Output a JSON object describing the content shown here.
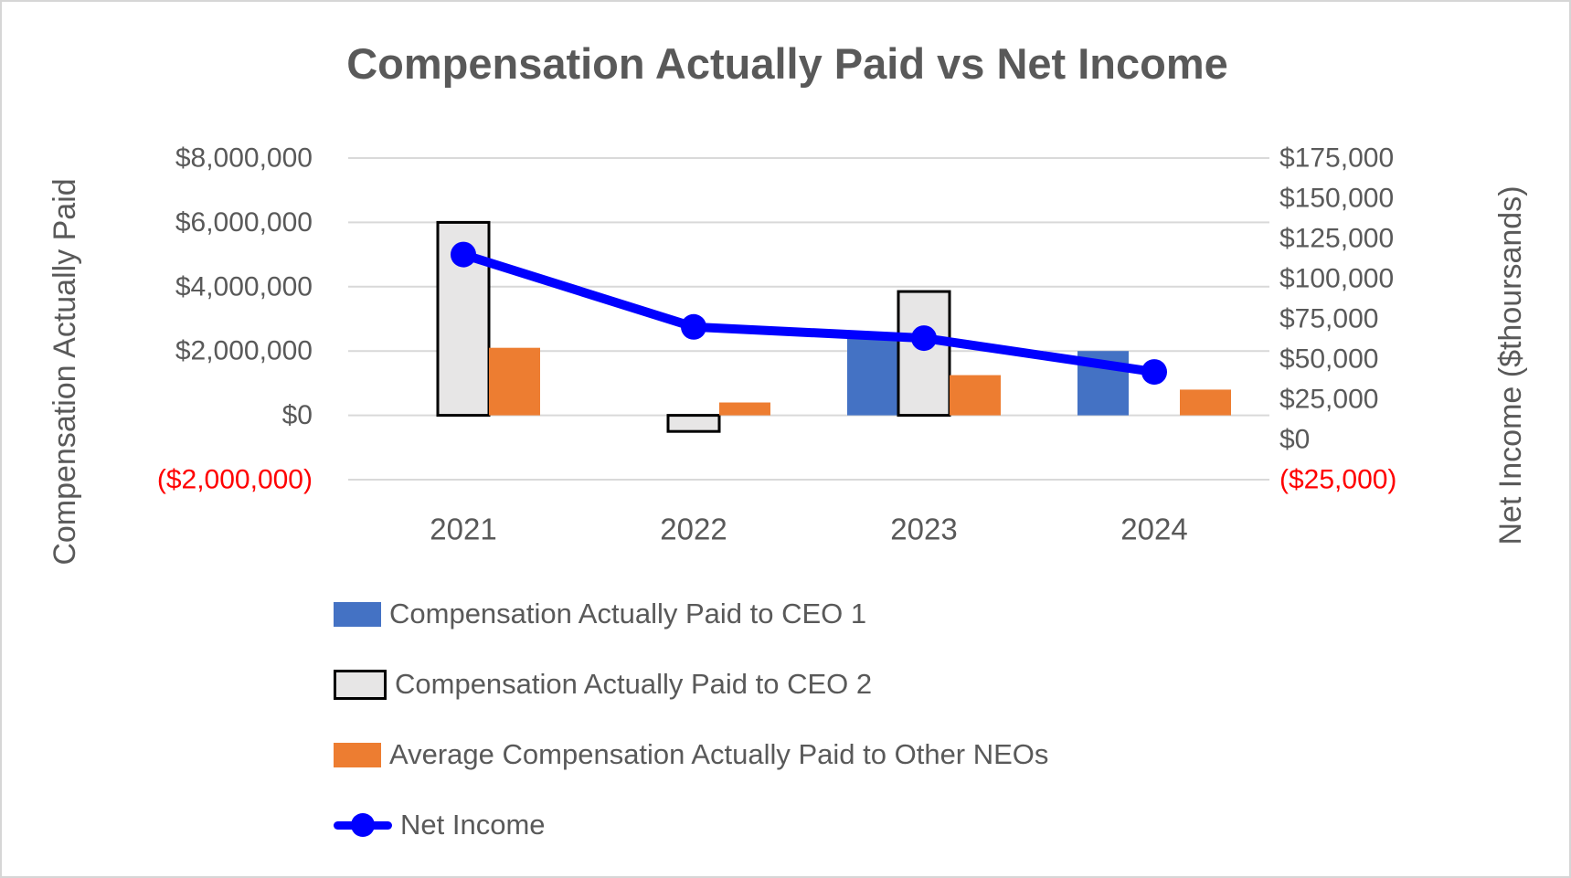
{
  "chart_data": {
    "type": "bar",
    "subtype": "clustered-bars-with-line-combo",
    "title": "Compensation Actually Paid vs Net Income",
    "categories": [
      "2021",
      "2022",
      "2023",
      "2024"
    ],
    "series": [
      {
        "name": "Compensation Actually Paid to CEO 1",
        "type": "bar",
        "axis": "left",
        "color": "#4472C4",
        "values": [
          0,
          0,
          2400000,
          2000000
        ]
      },
      {
        "name": "Compensation Actually Paid to CEO 2",
        "type": "bar",
        "axis": "left",
        "color": "#E7E6E6",
        "border_color": "#000000",
        "values": [
          6000000,
          -500000,
          3850000,
          0
        ]
      },
      {
        "name": "Average Compensation Actually Paid to Other NEOs",
        "type": "bar",
        "axis": "left",
        "color": "#ED7D31",
        "values": [
          2100000,
          400000,
          1250000,
          800000
        ]
      },
      {
        "name": "Net Income",
        "type": "line",
        "axis": "right",
        "color": "#0000FF",
        "values": [
          115000,
          70000,
          63000,
          42000
        ]
      }
    ],
    "left_axis": {
      "title": "Compensation Actually Paid",
      "min": -2000000,
      "max": 8000000,
      "tick_step": 2000000,
      "tick_labels": [
        "$8,000,000",
        "$6,000,000",
        "$4,000,000",
        "$2,000,000",
        "$0",
        "($2,000,000)"
      ]
    },
    "right_axis": {
      "title": "Net Income ($thoursands)",
      "min": -25000,
      "max": 175000,
      "tick_step": 25000,
      "tick_labels": [
        "$175,000",
        "$150,000",
        "$125,000",
        "$100,000",
        "$75,000",
        "$50,000",
        "$25,000",
        "$0",
        "($25,000)"
      ]
    },
    "grid": true,
    "legend_position": "bottom-left",
    "colors": {
      "text": "#595959",
      "gridline": "#D9D9D9",
      "negative_tick": "#FF0000",
      "background": "#FFFFFF"
    }
  }
}
